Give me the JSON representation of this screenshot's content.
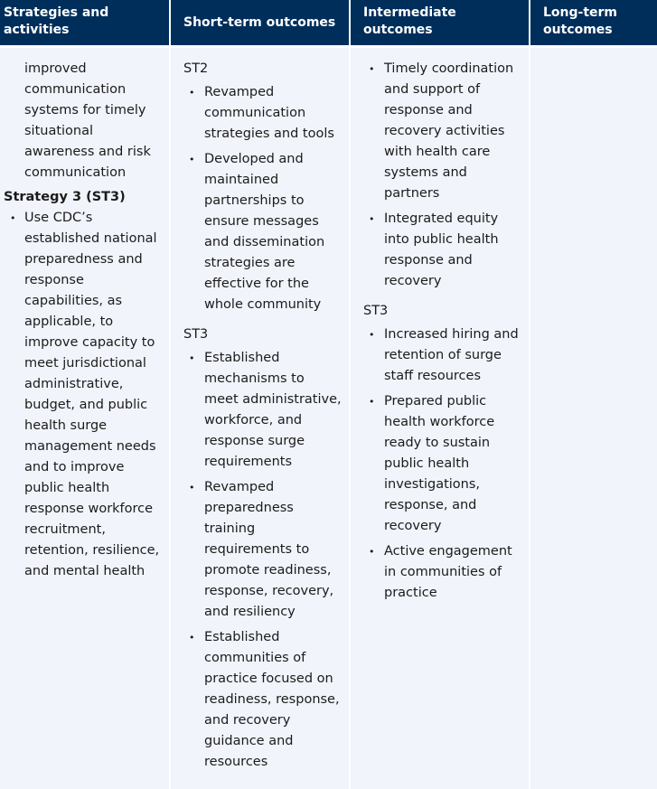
{
  "headers": [
    "Strategies and activities",
    "Short-term outcomes",
    "Intermediate outcomes",
    "Long-term outcomes"
  ],
  "colors": {
    "header_bg": "#002e5b",
    "cell_bg": "#f1f4fb"
  },
  "strategies": {
    "continued_text": "improved communication systems for timely situational awareness and risk communication",
    "strategy3_title": "Strategy 3 (ST3)",
    "strategy3_items": [
      "Use CDC’s established national preparedness and response capabilities, as applicable, to improve capacity to meet jurisdictional administrative, budget, and public health surge management needs and to improve public health response workforce recruitment, retention, resilience, and mental health"
    ]
  },
  "short_term": {
    "groups": [
      {
        "label": "ST2",
        "items": [
          "Revamped communication strategies and tools",
          "Developed and maintained partnerships to ensure messages and dissemination strategies are effective for the whole community"
        ]
      },
      {
        "label": "ST3",
        "items": [
          "Established mechanisms to meet administrative, workforce, and response surge requirements",
          "Revamped preparedness training requirements to promote readiness, response, recovery, and resiliency",
          "Established communities of practice focused on readiness, response, and recovery guidance and resources"
        ]
      }
    ]
  },
  "intermediate": {
    "first_items": [
      "Timely coordination and support of response and recovery activities with health care systems and partners",
      "Integrated equity into public health response and recovery"
    ],
    "groups": [
      {
        "label": "ST3",
        "items": [
          "Increased hiring and retention of surge staff resources",
          "Prepared public health workforce ready to sustain public health investigations, response, and recovery",
          "Active engagement in communities of practice"
        ]
      }
    ]
  }
}
